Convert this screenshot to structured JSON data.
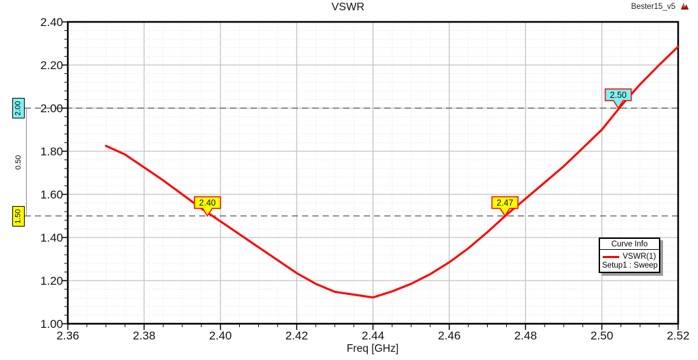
{
  "window": {
    "project_name": "Bester15_v5",
    "logo": "ansoft-logo-icon"
  },
  "chart_data": {
    "type": "line",
    "title": "VSWR",
    "xlabel": "Freq [GHz]",
    "ylabel": "",
    "xlim": [
      2.36,
      2.52
    ],
    "ylim": [
      1.0,
      2.4
    ],
    "x_major_step": 0.02,
    "x_minor_step": 0.005,
    "y_major_step": 0.2,
    "y_minor_step": 0.04,
    "grid": true,
    "x_tick_labels": [
      "2.36",
      "2.38",
      "2.40",
      "2.42",
      "2.44",
      "2.46",
      "2.48",
      "2.50",
      "2.52"
    ],
    "y_tick_labels": [
      "2.40",
      "2.20",
      "2.00",
      "1.80",
      "1.60",
      "1.40",
      "1.20",
      "1.00"
    ],
    "series": [
      {
        "name": "VSWR(1)",
        "color": "#ff0000",
        "points": [
          [
            2.37,
            1.825
          ],
          [
            2.375,
            1.785
          ],
          [
            2.38,
            1.725
          ],
          [
            2.385,
            1.665
          ],
          [
            2.39,
            1.6
          ],
          [
            2.395,
            1.535
          ],
          [
            2.4,
            1.475
          ],
          [
            2.405,
            1.415
          ],
          [
            2.41,
            1.355
          ],
          [
            2.415,
            1.295
          ],
          [
            2.42,
            1.235
          ],
          [
            2.425,
            1.185
          ],
          [
            2.43,
            1.148
          ],
          [
            2.435,
            1.135
          ],
          [
            2.44,
            1.122
          ],
          [
            2.445,
            1.15
          ],
          [
            2.45,
            1.185
          ],
          [
            2.455,
            1.23
          ],
          [
            2.46,
            1.285
          ],
          [
            2.465,
            1.35
          ],
          [
            2.47,
            1.425
          ],
          [
            2.475,
            1.505
          ],
          [
            2.48,
            1.58
          ],
          [
            2.485,
            1.655
          ],
          [
            2.49,
            1.73
          ],
          [
            2.495,
            1.815
          ],
          [
            2.5,
            1.9
          ],
          [
            2.505,
            2.01
          ],
          [
            2.51,
            2.11
          ],
          [
            2.515,
            2.2
          ],
          [
            2.52,
            2.285
          ]
        ]
      }
    ],
    "reference_lines": [
      {
        "label": "2.00",
        "value": 2.0,
        "fill": "#80f0f0"
      },
      {
        "label": "1.50",
        "value": 1.5,
        "fill": "#ffff00"
      }
    ],
    "delta_label": "0.50",
    "markers": [
      {
        "label": "2.40",
        "freq": 2.3966,
        "value": 1.5,
        "fill": "#ffff00"
      },
      {
        "label": "2.47",
        "freq": 2.4746,
        "value": 1.5,
        "fill": "#ffff00"
      },
      {
        "label": "2.50",
        "freq": 2.5043,
        "value": 2.0,
        "fill": "#80f0f0"
      }
    ],
    "colors": {
      "curve": "#ff0000",
      "major_grid": "#c2c2c2",
      "minor_grid": "#e1e1e1",
      "axis": "#000000",
      "ref_dash": "#6b6b6b",
      "marker_border": "#ff0000"
    }
  },
  "legend": {
    "title": "Curve Info",
    "series_label": "VSWR(1)",
    "sweep_label": "Setup1 : Sweep",
    "line_color": "#ff0000"
  }
}
